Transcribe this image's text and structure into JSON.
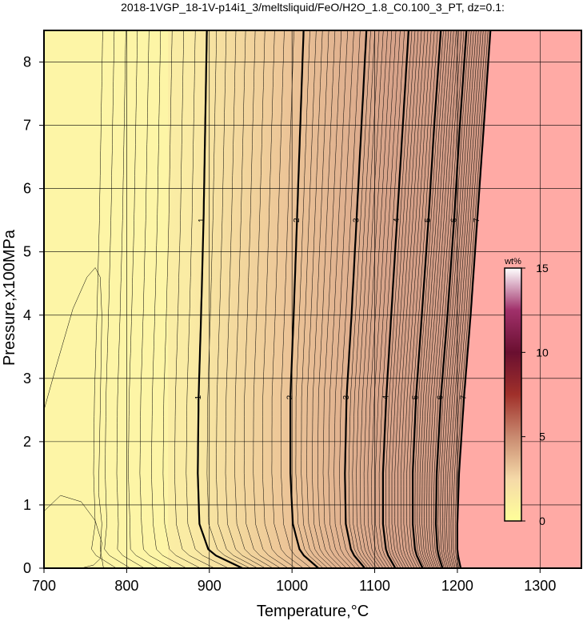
{
  "chart_data": {
    "type": "contour",
    "title": "2018-1VGP_18-1V-p14i1_3/meltsliquid/FeO/H2O_1.8_C0.100_3_PT, dz=0.1:",
    "xlabel": "Temperature,°C",
    "ylabel": "Pressure,x100MPa",
    "xlim": [
      700,
      1350
    ],
    "ylim": [
      0,
      8.5
    ],
    "x_ticks": [
      700,
      800,
      900,
      1000,
      1100,
      1200,
      1300
    ],
    "y_ticks": [
      0,
      1,
      2,
      3,
      4,
      5,
      6,
      7,
      8
    ],
    "grid": true,
    "contour_interval": 0.1,
    "major_contours": [
      {
        "level": 1,
        "label": "1",
        "points": [
          [
            940,
            0
          ],
          [
            900,
            0.25
          ],
          [
            888,
            0.7
          ],
          [
            886,
            1.5
          ],
          [
            887,
            2.7
          ],
          [
            890,
            4
          ],
          [
            893,
            5.5
          ],
          [
            895,
            7
          ],
          [
            897,
            8.5
          ]
        ]
      },
      {
        "level": 2,
        "label": "2",
        "points": [
          [
            1032,
            0
          ],
          [
            1010,
            0.25
          ],
          [
            1001,
            0.7
          ],
          [
            998,
            1.5
          ],
          [
            998,
            2.7
          ],
          [
            1002,
            4
          ],
          [
            1006,
            5.5
          ],
          [
            1010,
            7
          ],
          [
            1014,
            8.5
          ]
        ]
      },
      {
        "level": 3,
        "label": "3",
        "points": [
          [
            1088,
            0
          ],
          [
            1072,
            0.25
          ],
          [
            1065,
            0.7
          ],
          [
            1064,
            1.5
          ],
          [
            1066,
            2.7
          ],
          [
            1072,
            4
          ],
          [
            1078,
            5.5
          ],
          [
            1084,
            7
          ],
          [
            1090,
            8.5
          ]
        ]
      },
      {
        "level": 4,
        "label": "4",
        "points": [
          [
            1125,
            0
          ],
          [
            1114,
            0.25
          ],
          [
            1110,
            0.7
          ],
          [
            1110,
            1.5
          ],
          [
            1114,
            2.7
          ],
          [
            1120,
            4
          ],
          [
            1127,
            5.5
          ],
          [
            1134,
            7
          ],
          [
            1141,
            8.5
          ]
        ]
      },
      {
        "level": 5,
        "label": "5",
        "points": [
          [
            1158,
            0
          ],
          [
            1149,
            0.25
          ],
          [
            1146,
            0.7
          ],
          [
            1146,
            1.5
          ],
          [
            1150,
            2.7
          ],
          [
            1157,
            4
          ],
          [
            1165,
            5.5
          ],
          [
            1172,
            7
          ],
          [
            1180,
            8.5
          ]
        ]
      },
      {
        "level": 6,
        "label": "6",
        "points": [
          [
            1182,
            0
          ],
          [
            1176,
            0.25
          ],
          [
            1174,
            0.7
          ],
          [
            1175,
            1.5
          ],
          [
            1180,
            2.7
          ],
          [
            1188,
            4
          ],
          [
            1196,
            5.5
          ],
          [
            1203,
            7
          ],
          [
            1211,
            8.5
          ]
        ]
      },
      {
        "level": 7,
        "label": "7",
        "points": [
          [
            1204,
            0
          ],
          [
            1200,
            0.25
          ],
          [
            1200,
            0.7
          ],
          [
            1202,
            1.5
          ],
          [
            1208,
            2.7
          ],
          [
            1216,
            4
          ],
          [
            1224,
            5.5
          ],
          [
            1232,
            7
          ],
          [
            1240,
            8.5
          ]
        ]
      }
    ],
    "label_positions": [
      {
        "label": "1",
        "x": 891,
        "y": 5.5
      },
      {
        "label": "1",
        "x": 887,
        "y": 2.7
      },
      {
        "label": "2",
        "x": 1006,
        "y": 5.5
      },
      {
        "label": "2",
        "x": 998,
        "y": 2.7
      },
      {
        "label": "3",
        "x": 1078,
        "y": 5.5
      },
      {
        "label": "3",
        "x": 1066,
        "y": 2.7
      },
      {
        "label": "4",
        "x": 1127,
        "y": 5.5
      },
      {
        "label": "4",
        "x": 1114,
        "y": 2.7
      },
      {
        "label": "5",
        "x": 1165,
        "y": 5.5
      },
      {
        "label": "5",
        "x": 1150,
        "y": 2.7
      },
      {
        "label": "6",
        "x": 1196,
        "y": 5.5
      },
      {
        "label": "6",
        "x": 1180,
        "y": 2.7
      },
      {
        "label": "7",
        "x": 1224,
        "y": 5.5
      },
      {
        "label": "7",
        "x": 1208,
        "y": 2.7
      }
    ],
    "no_data_boundary_region": "right of ~1205-1240 °C (pink)",
    "colorbar": {
      "unit": "wt%",
      "range": [
        0,
        15
      ],
      "ticks": [
        0,
        5,
        10,
        15
      ],
      "colors": [
        "#ffff99",
        "#f5d9a8",
        "#c98a70",
        "#a0302a",
        "#6a0f30",
        "#a0306a",
        "#ffffff"
      ]
    },
    "colors": {
      "background_low": "#fdf5a6",
      "background_mid": "#ecc497",
      "background_high": "#d8a48a",
      "no_data_fill": "#ffaaa5",
      "contour": "#000000",
      "grid": "#000000"
    }
  }
}
